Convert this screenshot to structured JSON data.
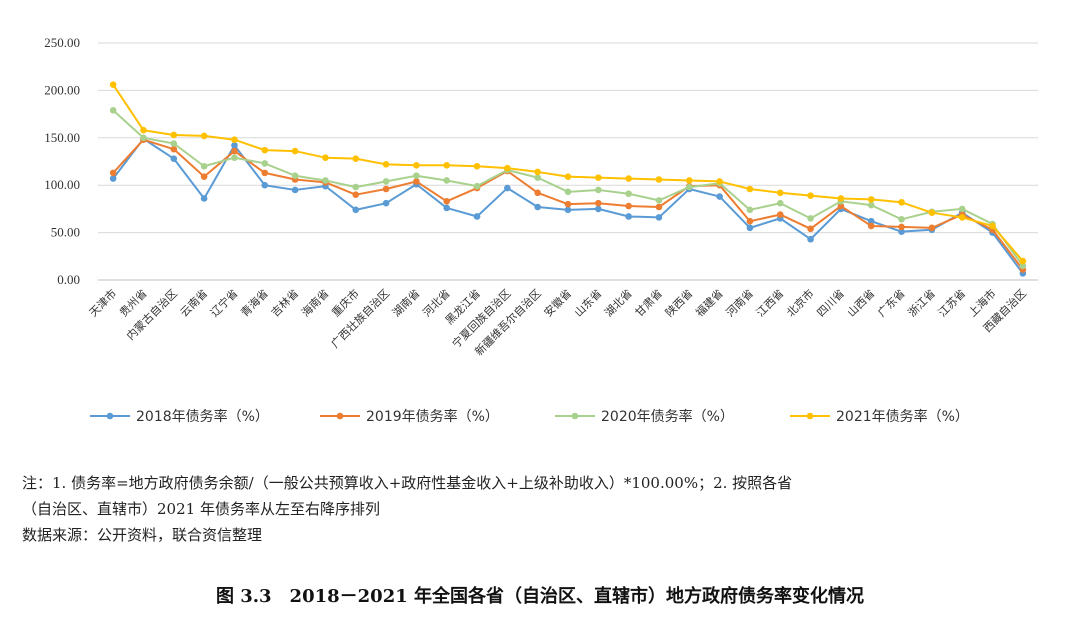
{
  "chart_data": {
    "type": "line",
    "categories": [
      "天津市",
      "贵州省",
      "内蒙古自治区",
      "云南省",
      "辽宁省",
      "青海省",
      "吉林省",
      "海南省",
      "重庆市",
      "广西壮族自治区",
      "湖南省",
      "河北省",
      "黑龙江省",
      "宁夏回族自治区",
      "新疆维吾尔自治区",
      "安徽省",
      "山东省",
      "湖北省",
      "甘肃省",
      "陕西省",
      "福建省",
      "河南省",
      "江西省",
      "北京市",
      "四川省",
      "山西省",
      "广东省",
      "浙江省",
      "江苏省",
      "上海市",
      "西藏自治区"
    ],
    "ylim": [
      0,
      250
    ],
    "yticks": [
      "0.00",
      "50.00",
      "100.00",
      "150.00",
      "200.00",
      "250.00"
    ],
    "grid": true,
    "legend_position": "bottom",
    "series": [
      {
        "name": "2018年债务率（%）",
        "color": "#5B9BD5",
        "values": [
          107,
          149,
          128,
          86,
          142,
          100,
          95,
          99,
          74,
          81,
          101,
          76,
          67,
          97,
          77,
          74,
          75,
          67,
          66,
          96,
          88,
          55,
          65,
          43,
          75,
          62,
          51,
          53,
          71,
          50,
          7
        ]
      },
      {
        "name": "2019年债务率（%）",
        "color": "#ED7D31",
        "values": [
          113,
          148,
          138,
          109,
          136,
          113,
          106,
          103,
          90,
          96,
          104,
          83,
          97,
          115,
          92,
          80,
          81,
          78,
          77,
          99,
          100,
          62,
          69,
          54,
          78,
          57,
          56,
          55,
          69,
          53,
          11
        ]
      },
      {
        "name": "2020年债务率（%）",
        "color": "#A9D18E",
        "values": [
          179,
          150,
          144,
          120,
          129,
          123,
          110,
          105,
          98,
          104,
          110,
          105,
          99,
          116,
          108,
          93,
          95,
          91,
          84,
          98,
          102,
          74,
          81,
          65,
          83,
          79,
          64,
          72,
          75,
          59,
          15
        ]
      },
      {
        "name": "2021年债务率（%）",
        "color": "#FFC000",
        "values": [
          206,
          158,
          153,
          152,
          148,
          137,
          136,
          129,
          128,
          122,
          121,
          121,
          120,
          118,
          114,
          109,
          108,
          107,
          106,
          105,
          104,
          96,
          92,
          89,
          86,
          85,
          82,
          71,
          66,
          57,
          20
        ]
      }
    ]
  },
  "notes": {
    "line1": "注：1. 债务率=地方政府债务余额/（一般公共预算收入+政府性基金收入+上级补助收入）*100.00%；2. 按照各省",
    "line2": "（自治区、直辖市）2021 年债务率从左至右降序排列",
    "line3": "数据来源：公开资料，联合资信整理"
  },
  "caption": "图 3.3　2018－2021 年全国各省（自治区、直辖市）地方政府债务率变化情况"
}
